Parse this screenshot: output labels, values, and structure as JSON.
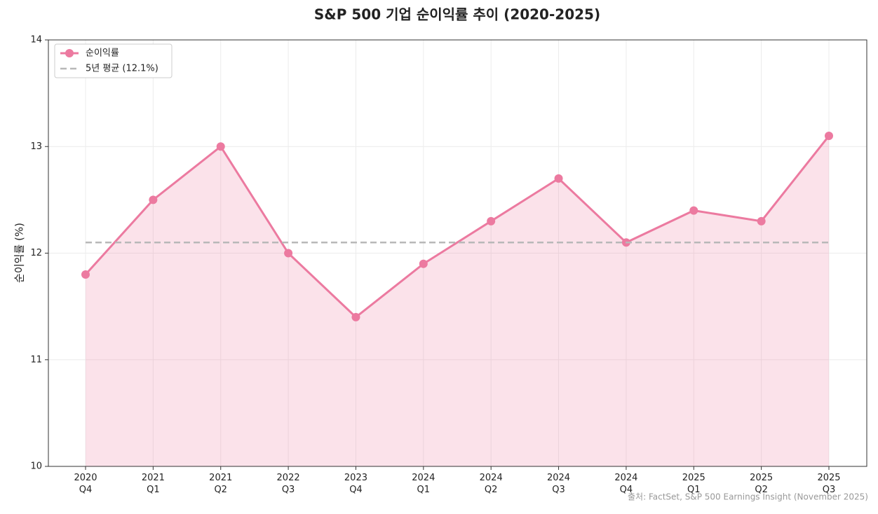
{
  "chart_data": {
    "type": "line",
    "title": "S&P 500 기업 순이익률 추이 (2020-2025)",
    "y_label": "순이익률 (%)",
    "categories": [
      "2020\nQ4",
      "2021\nQ1",
      "2021\nQ2",
      "2022\nQ3",
      "2023\nQ4",
      "2024\nQ1",
      "2024\nQ2",
      "2024\nQ3",
      "2024\nQ4",
      "2025\nQ1",
      "2025\nQ2",
      "2025\nQ3"
    ],
    "series": [
      {
        "name": "순이익률",
        "color": "#ec7aa0",
        "values": [
          11.8,
          12.5,
          13.0,
          12.0,
          11.4,
          11.9,
          12.3,
          12.7,
          12.1,
          12.4,
          12.3,
          13.1
        ]
      }
    ],
    "average": {
      "name": "5년 평균 (12.1%)",
      "value": 12.1,
      "color": "#b8b8b8"
    },
    "ylim": [
      10,
      14
    ],
    "yticks": [
      10,
      11,
      12,
      13,
      14
    ],
    "grid": true,
    "fill_area": true,
    "legend": "upper left",
    "source": "출처: FactSet, S&P 500 Earnings Insight (November 2025)"
  }
}
